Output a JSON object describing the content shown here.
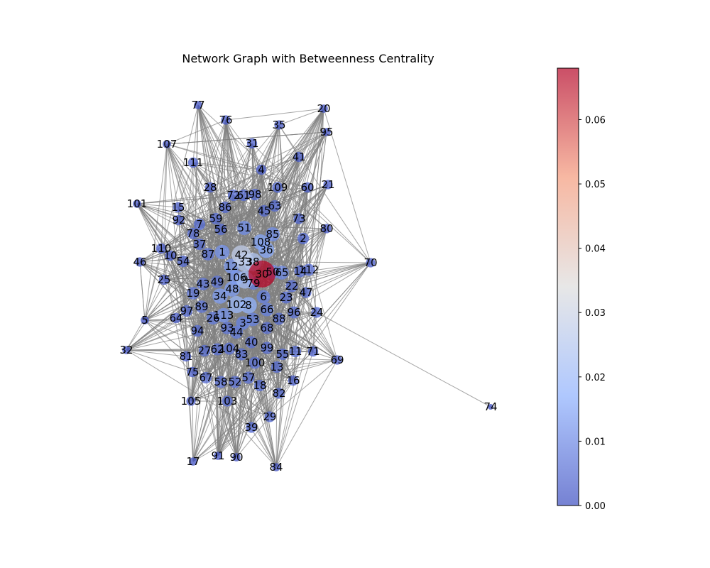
{
  "chart_data": {
    "type": "network",
    "title": "Network Graph with Betweenness Centrality",
    "colormap": "coolwarm",
    "colorbar": {
      "range": [
        0.0,
        0.068
      ],
      "ticks": [
        "0.00",
        "0.01",
        "0.02",
        "0.03",
        "0.04",
        "0.05",
        "0.06"
      ],
      "tick_values": [
        0.0,
        0.01,
        0.02,
        0.03,
        0.04,
        0.05,
        0.06
      ]
    },
    "node_ids": [
      1,
      2,
      3,
      4,
      5,
      6,
      7,
      8,
      9,
      10,
      11,
      12,
      13,
      14,
      15,
      16,
      17,
      18,
      19,
      20,
      21,
      22,
      23,
      24,
      25,
      26,
      27,
      28,
      29,
      30,
      31,
      32,
      33,
      34,
      35,
      36,
      37,
      38,
      39,
      40,
      41,
      42,
      43,
      44,
      45,
      46,
      47,
      48,
      49,
      50,
      51,
      52,
      53,
      54,
      55,
      56,
      57,
      58,
      59,
      60,
      61,
      62,
      63,
      64,
      65,
      66,
      67,
      68,
      69,
      70,
      71,
      72,
      73,
      74,
      75,
      76,
      77,
      78,
      79,
      80,
      81,
      82,
      83,
      84,
      85,
      86,
      87,
      88,
      89,
      90,
      91,
      92,
      93,
      94,
      95,
      96,
      97,
      98,
      99,
      100,
      101,
      102,
      103,
      104,
      105,
      106,
      107,
      108,
      109,
      110,
      111,
      112,
      113
    ],
    "betweenness": {
      "30": 0.068,
      "42": 0.028,
      "33": 0.025,
      "38": 0.024,
      "9": 0.022,
      "102": 0.02,
      "8": 0.018,
      "36": 0.016,
      "108": 0.015,
      "34": 0.014,
      "48": 0.014,
      "12": 0.013,
      "106": 0.013,
      "1": 0.012,
      "113": 0.012,
      "51": 0.011,
      "85": 0.011,
      "50": 0.011,
      "65": 0.01,
      "6": 0.009,
      "66": 0.009,
      "53": 0.009,
      "3": 0.009,
      "44": 0.008,
      "26": 0.008,
      "79": 0.008,
      "87": 0.007,
      "49": 0.007,
      "43": 0.007,
      "19": 0.007,
      "89": 0.007,
      "93": 0.007,
      "40": 0.006,
      "62": 0.006,
      "104": 0.006,
      "83": 0.006,
      "100": 0.006,
      "99": 0.006,
      "57": 0.006,
      "52": 0.006,
      "58": 0.006,
      "68": 0.006,
      "88": 0.006,
      "96": 0.006,
      "23": 0.006,
      "22": 0.006,
      "14": 0.006,
      "112": 0.006,
      "2": 0.005,
      "63": 0.005,
      "45": 0.005,
      "98": 0.005,
      "61": 0.005,
      "72": 0.005,
      "86": 0.005,
      "59": 0.005,
      "56": 0.005,
      "7": 0.005,
      "78": 0.005,
      "37": 0.005,
      "54": 0.005,
      "97": 0.005,
      "94": 0.005,
      "27": 0.005,
      "67": 0.005,
      "18": 0.005,
      "13": 0.005,
      "55": 0.005,
      "11": 0.005,
      "82": 0.004,
      "103": 0.004,
      "39": 0.004,
      "29": 0.004,
      "47": 0.004,
      "24": 0.004,
      "73": 0.004,
      "109": 0.004,
      "60": 0.003,
      "41": 0.003,
      "4": 0.003,
      "31": 0.003,
      "28": 0.003,
      "111": 0.003,
      "15": 0.003,
      "92": 0.003,
      "10": 0.003,
      "110": 0.003,
      "25": 0.003,
      "64": 0.003,
      "81": 0.003,
      "75": 0.003,
      "105": 0.002,
      "16": 0.003,
      "71": 0.003,
      "80": 0.002,
      "21": 0.002,
      "35": 0.002,
      "76": 0.002,
      "77": 0.001,
      "107": 0.001,
      "101": 0.001,
      "46": 0.002,
      "5": 0.001,
      "32": 0.001,
      "17": 0.001,
      "91": 0.001,
      "90": 0.001,
      "84": 0.001,
      "69": 0.002,
      "70": 0.002,
      "95": 0.001,
      "20": 0.001,
      "74": 0.0
    },
    "edges_sample": [
      [
        74,
        24
      ]
    ]
  }
}
